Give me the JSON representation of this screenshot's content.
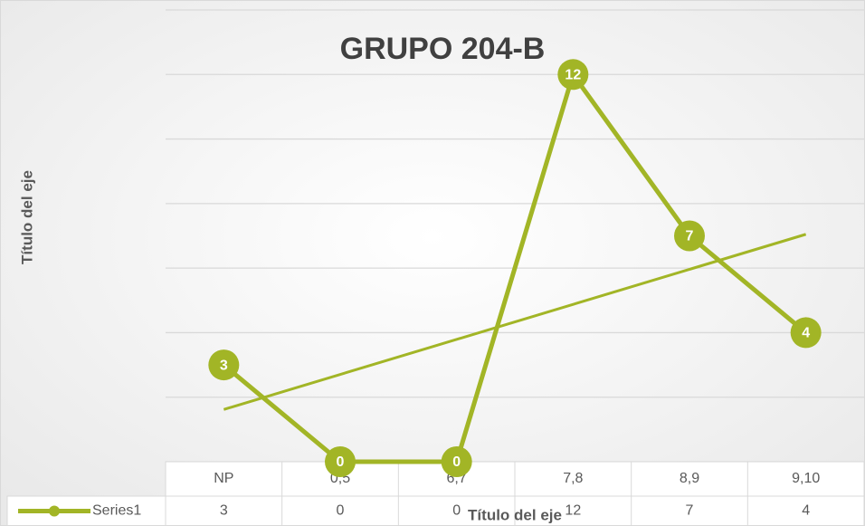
{
  "chart_data": {
    "type": "line",
    "title": "GRUPO 204-B",
    "x_label": "Título del eje",
    "y_label": "Título del eje",
    "categories": [
      "NP",
      "0,5",
      "6,7",
      "7,8",
      "8,9",
      "9,10"
    ],
    "series": [
      {
        "name": "Series1",
        "color": "#a2b526",
        "values": [
          3,
          0,
          0,
          12,
          7,
          4
        ]
      }
    ],
    "ylim": [
      0,
      14
    ],
    "yticks": [
      0,
      2,
      4,
      6,
      8,
      10,
      12,
      14
    ],
    "grid": true,
    "trendline": "linear",
    "data_table": true
  }
}
